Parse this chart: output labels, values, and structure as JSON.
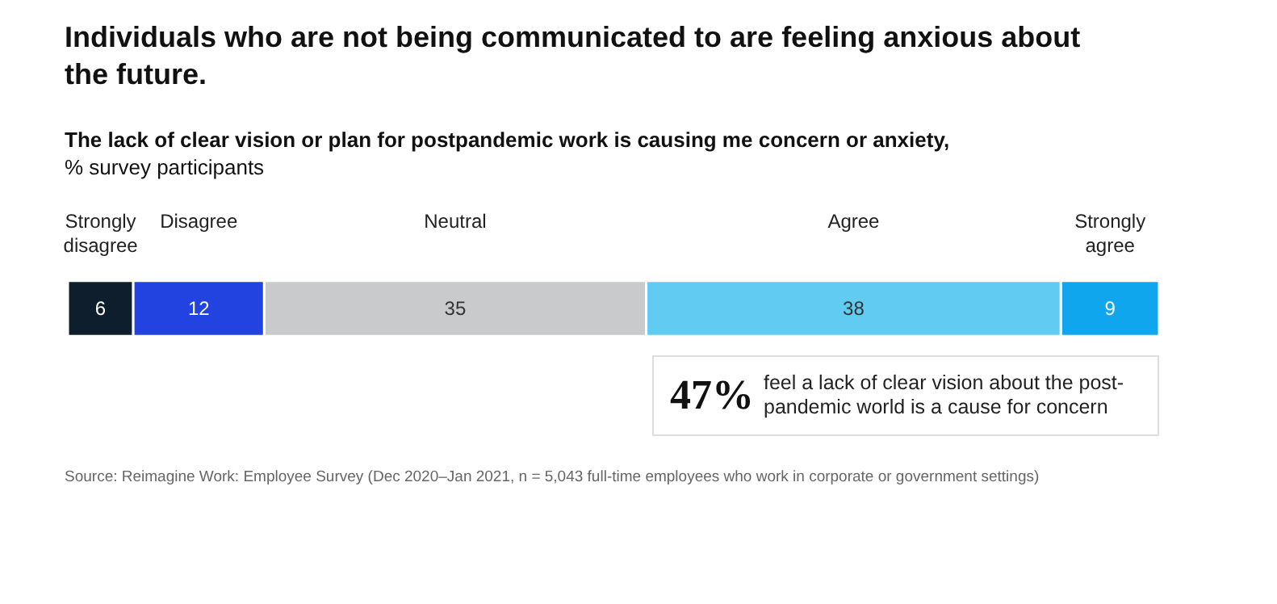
{
  "chart_data": {
    "type": "bar",
    "orientation": "horizontal",
    "stacked": true,
    "data_labels": true,
    "title": "Individuals who are not being communicated to are feeling anxious about the future.",
    "subtitle": "The lack of clear vision or plan for postpandemic work is causing me concern or anxiety,",
    "annotations": [
      "% survey participants",
      "47%",
      "feel a lack of clear vision about the post-pandemic world is a cause for concern",
      "Source: Reimagine Work: Employee Survey (Dec 2020–Jan 2021, n = 5,043 full-time employees who work in corporate or government settings)"
    ],
    "categories": [
      null
    ],
    "series": [
      {
        "name": "Strongly disagree",
        "color": "#0e1e2c",
        "values": [
          6
        ]
      },
      {
        "name": "Disagree",
        "color": "#2343e0",
        "values": [
          12
        ]
      },
      {
        "name": "Neutral",
        "color": "#c9cacc",
        "values": [
          35
        ]
      },
      {
        "name": "Agree",
        "color": "#62cbf2",
        "values": [
          38
        ]
      },
      {
        "name": "Strongly agree",
        "color": "#10a6ee",
        "values": [
          9
        ]
      }
    ]
  }
}
